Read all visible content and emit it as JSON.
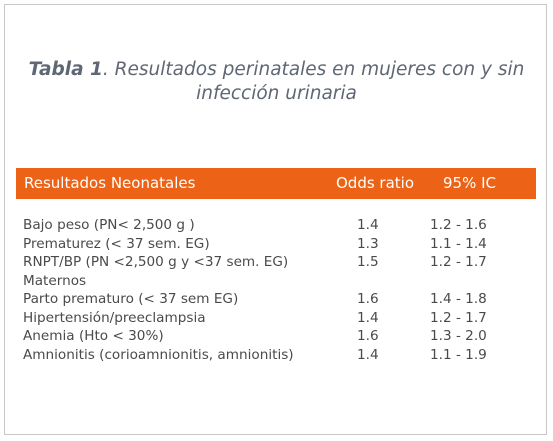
{
  "caption": {
    "prefix": "Tabla 1",
    "line1_rest": ". Resultados perinatales en mujeres con y sin",
    "line2": "infección urinaria"
  },
  "table": {
    "headers": {
      "label": "Resultados Neonatales",
      "odds_ratio": "Odds ratio",
      "ic": "95% IC"
    },
    "rows": [
      {
        "label": "Bajo peso (PN< 2,500 g )",
        "odds_ratio": "1.4",
        "ic": "1.2 - 1.6"
      },
      {
        "label": "Prematurez (< 37 sem. EG)",
        "odds_ratio": "1.3",
        "ic": "1.1 - 1.4"
      },
      {
        "label": "RNPT/BP (PN <2,500 g y <37 sem. EG)",
        "odds_ratio": "1.5",
        "ic": "1.2 - 1.7"
      },
      {
        "label": "Maternos",
        "odds_ratio": "",
        "ic": ""
      },
      {
        "label": "Parto prematuro (< 37 sem EG)",
        "odds_ratio": "1.6",
        "ic": "1.4 - 1.8"
      },
      {
        "label": "Hipertensión/preeclampsia",
        "odds_ratio": "1.4",
        "ic": "1.2 - 1.7"
      },
      {
        "label": "Anemia (Hto < 30%)",
        "odds_ratio": "1.6",
        "ic": "1.3 - 2.0"
      },
      {
        "label": "Amnionitis (corioamnionitis, amnionitis)",
        "odds_ratio": "1.4",
        "ic": "1.1 - 1.9"
      }
    ]
  },
  "colors": {
    "header_bg": "#ec6317",
    "caption_text": "#5f6775",
    "body_text": "#4a4a4a",
    "frame_border": "#c8c8c8"
  }
}
